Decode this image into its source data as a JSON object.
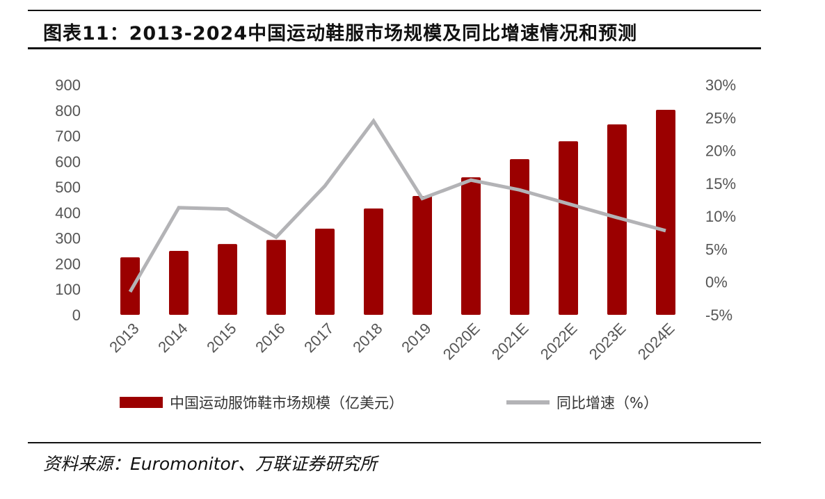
{
  "title": "图表11：2013-2024中国运动鞋服市场规模及同比增速情况和预测",
  "source": "资料来源：Euromonitor、万联证券研究所",
  "chart_data": {
    "type": "bar+line",
    "title": "图表11：2013-2024中国运动鞋服市场规模及同比增速情况和预测",
    "categories": [
      "2013",
      "2014",
      "2015",
      "2016",
      "2017",
      "2018",
      "2019",
      "2020E",
      "2021E",
      "2022E",
      "2023E",
      "2024E"
    ],
    "series": [
      {
        "name": "中国运动服饰鞋市场规模（亿美元）",
        "type": "bar",
        "axis": "left",
        "color": "#9b0000",
        "values": [
          225,
          250,
          277,
          293,
          337,
          416,
          465,
          538,
          609,
          679,
          745,
          802
        ]
      },
      {
        "name": "同比增速（%）",
        "type": "line",
        "axis": "right",
        "color": "#b3b3b6",
        "values": [
          -1.5,
          11.3,
          11.1,
          6.8,
          14.6,
          24.5,
          12.7,
          15.5,
          14.0,
          11.9,
          9.8,
          7.8
        ]
      }
    ],
    "left_axis": {
      "ylim": [
        0,
        900
      ],
      "ticks": [
        "0",
        "100",
        "200",
        "300",
        "400",
        "500",
        "600",
        "700",
        "800",
        "900"
      ]
    },
    "right_axis": {
      "ylim": [
        -5,
        30
      ],
      "ticks": [
        "-5%",
        "0%",
        "5%",
        "10%",
        "15%",
        "20%",
        "25%",
        "30%"
      ]
    },
    "grid": false,
    "legend": "bottom"
  }
}
